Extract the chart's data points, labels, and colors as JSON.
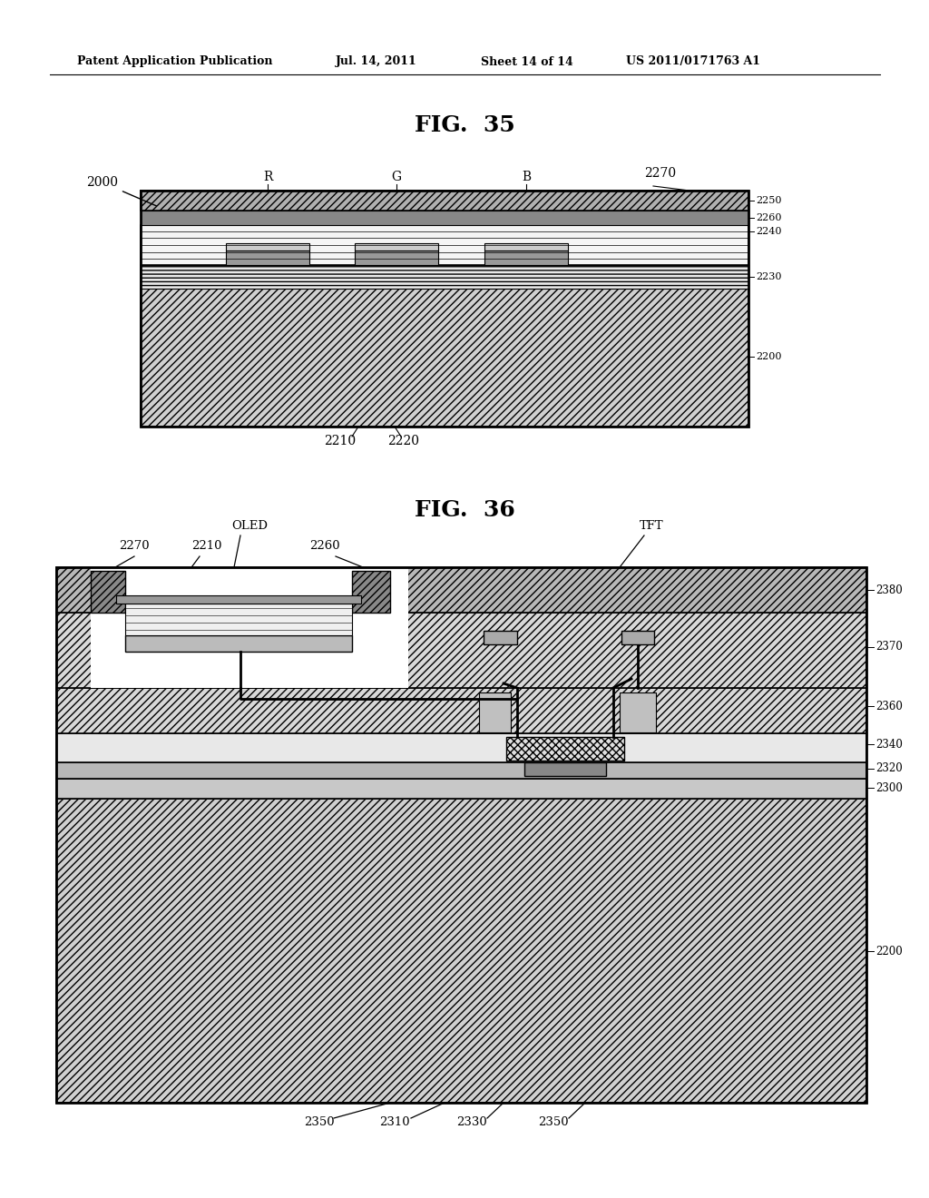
{
  "bg_color": "#ffffff",
  "header_text": "Patent Application Publication",
  "header_date": "Jul. 14, 2011",
  "header_sheet": "Sheet 14 of 14",
  "header_patent": "US 2011/0171763 A1",
  "fig35_title": "FIG.  35",
  "fig36_title": "FIG.  36",
  "line_color": "#000000"
}
